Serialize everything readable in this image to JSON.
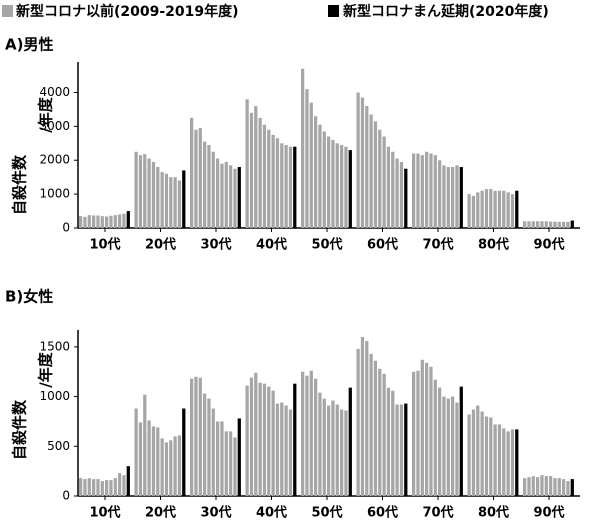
{
  "chart_data": [
    {
      "type": "grouped-bar",
      "title": "A)男性",
      "ylabel": [
        "自殺件数",
        "/年度"
      ],
      "categories": [
        "10代",
        "20代",
        "30代",
        "40代",
        "50代",
        "60代",
        "70代",
        "80代",
        "90代"
      ],
      "series": [
        {
          "name": "新型コロナ以前(2009-2019年度)",
          "color": "#a6a6a6",
          "values": [
            [
              350,
              330,
              380,
              370,
              370,
              350,
              340,
              360,
              380,
              400,
              420
            ],
            [
              2250,
              2150,
              2180,
              2050,
              1950,
              1800,
              1650,
              1600,
              1500,
              1500,
              1400
            ],
            [
              3250,
              2900,
              2950,
              2550,
              2450,
              2250,
              2050,
              1900,
              1950,
              1850,
              1750
            ],
            [
              3800,
              3400,
              3600,
              3250,
              3050,
              2900,
              2750,
              2650,
              2500,
              2450,
              2400
            ],
            [
              4700,
              4100,
              3700,
              3300,
              3050,
              2850,
              2700,
              2600,
              2500,
              2450,
              2400
            ],
            [
              4000,
              3850,
              3600,
              3350,
              3150,
              2900,
              2700,
              2400,
              2250,
              2050,
              1950
            ],
            [
              2200,
              2200,
              2150,
              2250,
              2200,
              2150,
              2000,
              1850,
              1800,
              1800,
              1850
            ],
            [
              1000,
              950,
              1050,
              1100,
              1150,
              1150,
              1100,
              1100,
              1100,
              1050,
              1000
            ],
            [
              200,
              200,
              200,
              200,
              200,
              200,
              190,
              190,
              180,
              180,
              180
            ]
          ]
        },
        {
          "name": "新型コロナまん延期(2020年度)",
          "color": "#000000",
          "values": [
            500,
            1700,
            1800,
            2400,
            2300,
            1750,
            1800,
            1100,
            220
          ]
        }
      ],
      "ylim": [
        0,
        4900
      ],
      "yticks": [
        0,
        1000,
        2000,
        3000,
        4000
      ]
    },
    {
      "type": "grouped-bar",
      "title": "B)女性",
      "ylabel": [
        "自殺件数",
        "/年度"
      ],
      "categories": [
        "10代",
        "20代",
        "30代",
        "40代",
        "50代",
        "60代",
        "70代",
        "80代",
        "90代"
      ],
      "series": [
        {
          "color": "#a6a6a6",
          "values": [
            [
              180,
              170,
              180,
              170,
              170,
              150,
              160,
              160,
              180,
              230,
              210
            ],
            [
              880,
              740,
              1020,
              760,
              700,
              690,
              580,
              540,
              560,
              600,
              610
            ],
            [
              1180,
              1200,
              1190,
              1030,
              980,
              880,
              750,
              750,
              650,
              650,
              590
            ],
            [
              1110,
              1190,
              1240,
              1140,
              1130,
              1100,
              1060,
              930,
              940,
              910,
              870
            ],
            [
              1250,
              1210,
              1260,
              1180,
              1040,
              980,
              910,
              960,
              920,
              870,
              860
            ],
            [
              1480,
              1600,
              1560,
              1430,
              1360,
              1280,
              1230,
              1090,
              1060,
              920,
              920
            ],
            [
              1250,
              1260,
              1370,
              1340,
              1300,
              1170,
              1090,
              1000,
              980,
              1000,
              940
            ],
            [
              820,
              870,
              910,
              850,
              800,
              790,
              720,
              720,
              680,
              650,
              670
            ],
            [
              180,
              190,
              200,
              190,
              210,
              200,
              200,
              180,
              180,
              170,
              150
            ]
          ]
        },
        {
          "color": "#000000",
          "values": [
            300,
            880,
            780,
            1130,
            1090,
            930,
            1100,
            670,
            170
          ]
        }
      ],
      "ylim": [
        0,
        1670
      ],
      "yticks": [
        0,
        500,
        1000,
        1500
      ]
    }
  ]
}
